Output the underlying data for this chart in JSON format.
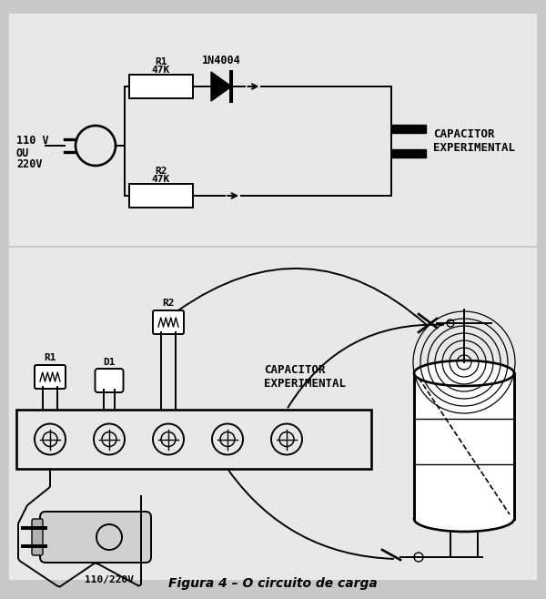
{
  "bg_color": "#c8c8c8",
  "fig_bg": "#c8c8c8",
  "line_color": "#000000",
  "title": "Figura 4 – O circuito de carga",
  "title_fontsize": 10,
  "sch_voltage_label": "110 V\nOU\n220V",
  "sch_r1_label": "R1\n47K",
  "sch_r2_label": "R2\n47K",
  "sch_diode_label": "1N4004",
  "sch_cap_label": "CAPACITOR\nEXPERIMENTAL",
  "phys_r1_label": "R1",
  "phys_d1_label": "D1",
  "phys_r2_label": "R2",
  "phys_cap_label": "CAPACITOR\nEXPERIMENTAL",
  "phys_voltage_label": "110/220V"
}
